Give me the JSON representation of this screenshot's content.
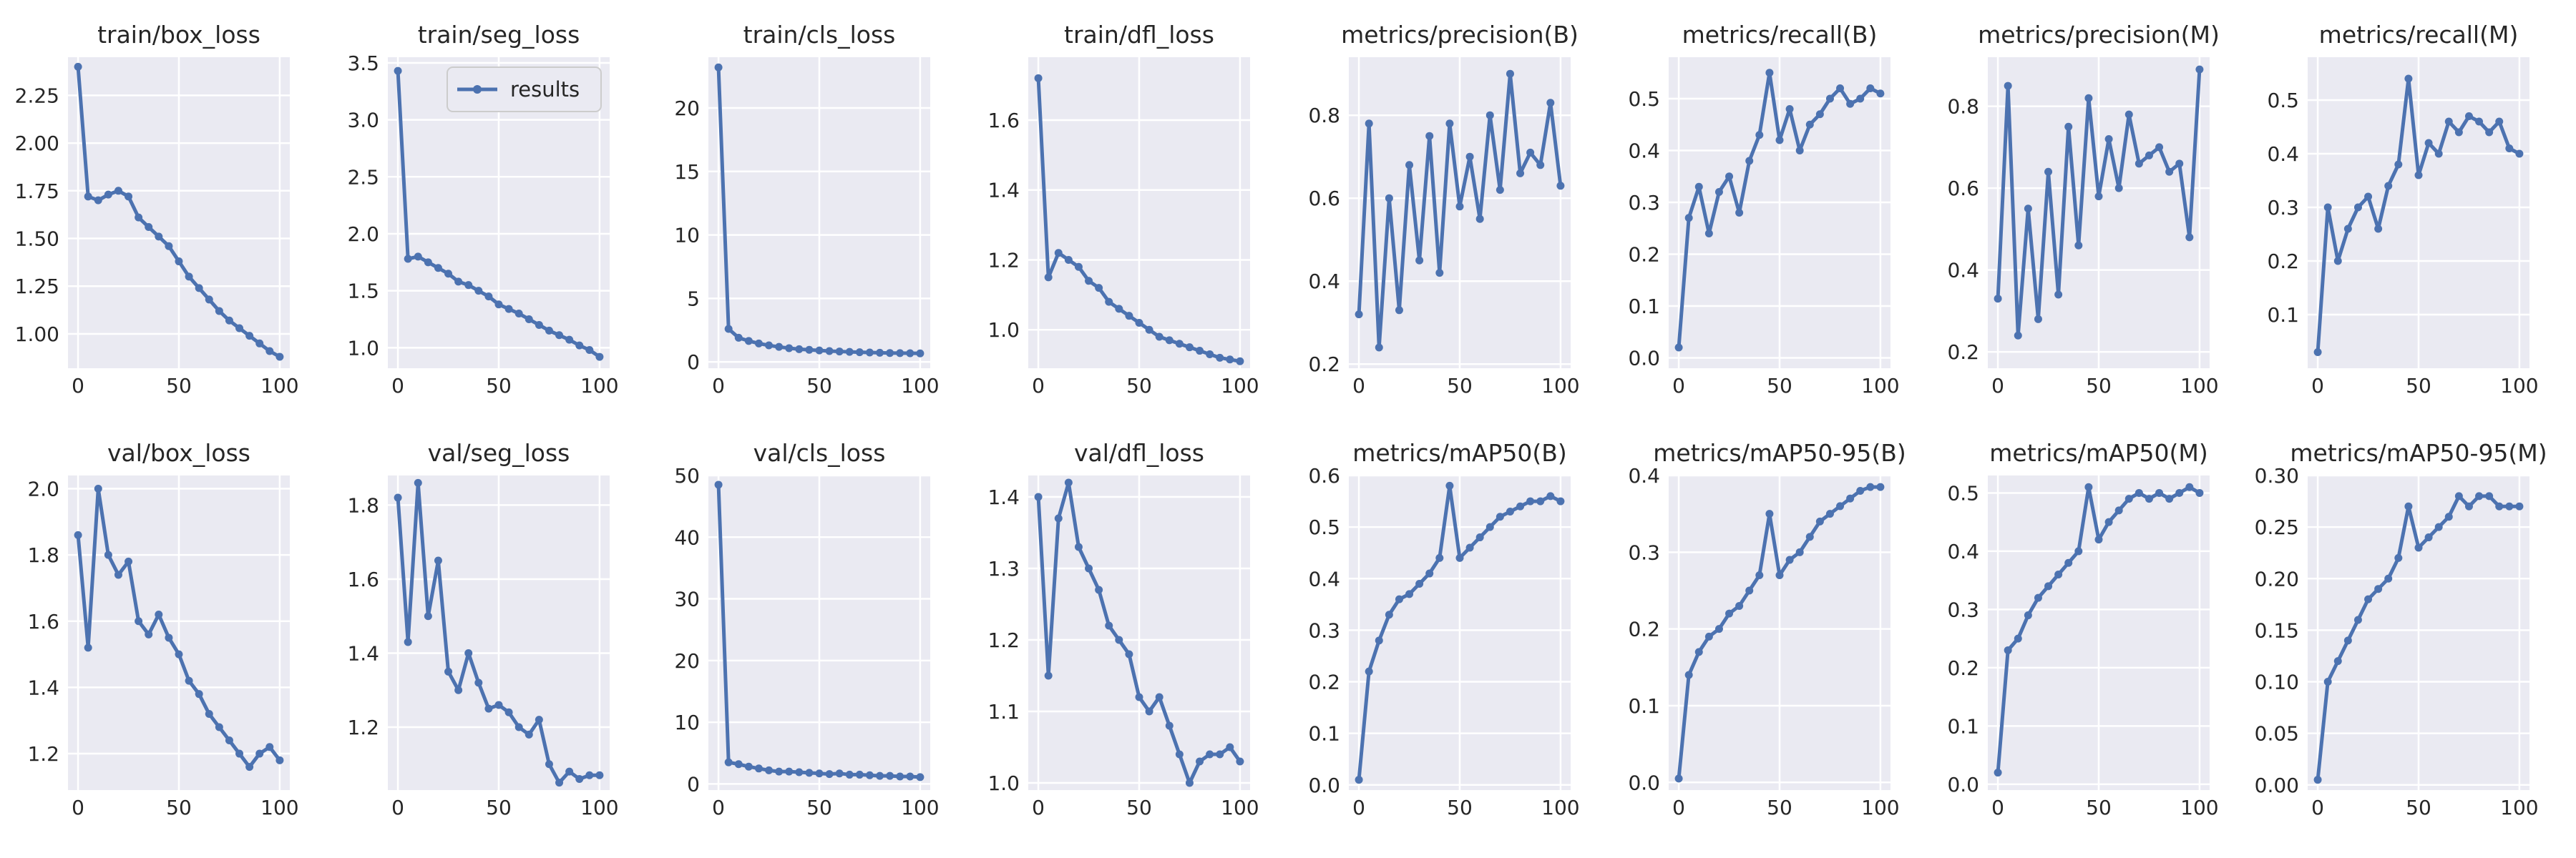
{
  "figure": {
    "style": {
      "background": "#eaeaf2",
      "grid_color": "#ffffff",
      "line_color": "#4c72b0",
      "tick_label_color": "#262626"
    },
    "legend": {
      "label": "results",
      "subplot_index": 1,
      "placement": "top-right"
    }
  },
  "chart_data": [
    {
      "type": "line",
      "title": "train/box_loss",
      "x_range": [
        0,
        100
      ],
      "ylim": [
        0.82,
        2.45
      ],
      "grid": true,
      "xticks": [
        "0",
        "50",
        "100"
      ],
      "yticks": [
        "1.00",
        "1.25",
        "1.50",
        "1.75",
        "2.00",
        "2.25"
      ],
      "series": [
        {
          "name": "results",
          "x_step": 5,
          "values": [
            2.4,
            1.72,
            1.7,
            1.73,
            1.75,
            1.72,
            1.61,
            1.56,
            1.51,
            1.46,
            1.38,
            1.3,
            1.24,
            1.18,
            1.12,
            1.07,
            1.03,
            0.99,
            0.95,
            0.91,
            0.88
          ]
        }
      ]
    },
    {
      "type": "line",
      "title": "train/seg_loss",
      "x_range": [
        0,
        100
      ],
      "ylim": [
        0.82,
        3.55
      ],
      "grid": true,
      "xticks": [
        "0",
        "50",
        "100"
      ],
      "yticks": [
        "1.0",
        "1.5",
        "2.0",
        "2.5",
        "3.0",
        "3.5"
      ],
      "series": [
        {
          "name": "results",
          "x_step": 5,
          "values": [
            3.43,
            1.78,
            1.8,
            1.75,
            1.7,
            1.65,
            1.58,
            1.55,
            1.5,
            1.45,
            1.38,
            1.34,
            1.3,
            1.25,
            1.2,
            1.15,
            1.11,
            1.07,
            1.02,
            0.98,
            0.92
          ]
        }
      ]
    },
    {
      "type": "line",
      "title": "train/cls_loss",
      "x_range": [
        0,
        100
      ],
      "ylim": [
        -0.5,
        24
      ],
      "grid": true,
      "xticks": [
        "0",
        "50",
        "100"
      ],
      "yticks": [
        "0",
        "5",
        "10",
        "15",
        "20"
      ],
      "series": [
        {
          "name": "results",
          "x_step": 5,
          "values": [
            23.2,
            2.6,
            1.9,
            1.65,
            1.45,
            1.3,
            1.18,
            1.08,
            1.0,
            0.95,
            0.9,
            0.85,
            0.82,
            0.79,
            0.76,
            0.74,
            0.72,
            0.7,
            0.69,
            0.68,
            0.67
          ]
        }
      ]
    },
    {
      "type": "line",
      "title": "train/dfl_loss",
      "x_range": [
        0,
        100
      ],
      "ylim": [
        0.89,
        1.78
      ],
      "grid": true,
      "xticks": [
        "0",
        "50",
        "100"
      ],
      "yticks": [
        "1.0",
        "1.2",
        "1.4",
        "1.6"
      ],
      "series": [
        {
          "name": "results",
          "x_step": 5,
          "values": [
            1.72,
            1.15,
            1.22,
            1.2,
            1.18,
            1.14,
            1.12,
            1.08,
            1.06,
            1.04,
            1.02,
            1.0,
            0.98,
            0.97,
            0.96,
            0.95,
            0.94,
            0.93,
            0.92,
            0.915,
            0.91
          ]
        }
      ]
    },
    {
      "type": "line",
      "title": "metrics/precision(B)",
      "x_range": [
        0,
        100
      ],
      "ylim": [
        0.19,
        0.94
      ],
      "grid": true,
      "xticks": [
        "0",
        "50",
        "100"
      ],
      "yticks": [
        "0.2",
        "0.4",
        "0.6",
        "0.8"
      ],
      "series": [
        {
          "name": "results",
          "x_step": 5,
          "values": [
            0.32,
            0.78,
            0.24,
            0.6,
            0.33,
            0.68,
            0.45,
            0.75,
            0.42,
            0.78,
            0.58,
            0.7,
            0.55,
            0.8,
            0.62,
            0.9,
            0.66,
            0.71,
            0.68,
            0.83,
            0.63
          ]
        }
      ]
    },
    {
      "type": "line",
      "title": "metrics/recall(B)",
      "x_range": [
        0,
        100
      ],
      "ylim": [
        -0.02,
        0.58
      ],
      "grid": true,
      "xticks": [
        "0",
        "50",
        "100"
      ],
      "yticks": [
        "0.0",
        "0.1",
        "0.2",
        "0.3",
        "0.4",
        "0.5"
      ],
      "series": [
        {
          "name": "results",
          "x_step": 5,
          "values": [
            0.02,
            0.27,
            0.33,
            0.24,
            0.32,
            0.35,
            0.28,
            0.38,
            0.43,
            0.55,
            0.42,
            0.48,
            0.4,
            0.45,
            0.47,
            0.5,
            0.52,
            0.49,
            0.5,
            0.52,
            0.51
          ]
        }
      ]
    },
    {
      "type": "line",
      "title": "metrics/precision(M)",
      "x_range": [
        0,
        100
      ],
      "ylim": [
        0.16,
        0.92
      ],
      "grid": true,
      "xticks": [
        "0",
        "50",
        "100"
      ],
      "yticks": [
        "0.2",
        "0.4",
        "0.6",
        "0.8"
      ],
      "series": [
        {
          "name": "results",
          "x_step": 5,
          "values": [
            0.33,
            0.85,
            0.24,
            0.55,
            0.28,
            0.64,
            0.34,
            0.75,
            0.46,
            0.82,
            0.58,
            0.72,
            0.6,
            0.78,
            0.66,
            0.68,
            0.7,
            0.64,
            0.66,
            0.48,
            0.89
          ]
        }
      ]
    },
    {
      "type": "line",
      "title": "metrics/recall(M)",
      "x_range": [
        0,
        100
      ],
      "ylim": [
        0.0,
        0.58
      ],
      "grid": true,
      "xticks": [
        "0",
        "50",
        "100"
      ],
      "yticks": [
        "0.1",
        "0.2",
        "0.3",
        "0.4",
        "0.5"
      ],
      "series": [
        {
          "name": "results",
          "x_step": 5,
          "values": [
            0.03,
            0.3,
            0.2,
            0.26,
            0.3,
            0.32,
            0.26,
            0.34,
            0.38,
            0.54,
            0.36,
            0.42,
            0.4,
            0.46,
            0.44,
            0.47,
            0.46,
            0.44,
            0.46,
            0.41,
            0.4
          ]
        }
      ]
    },
    {
      "type": "line",
      "title": "val/box_loss",
      "x_range": [
        0,
        100
      ],
      "ylim": [
        1.09,
        2.04
      ],
      "grid": true,
      "xticks": [
        "0",
        "50",
        "100"
      ],
      "yticks": [
        "1.2",
        "1.4",
        "1.6",
        "1.8",
        "2.0"
      ],
      "series": [
        {
          "name": "results",
          "x_step": 5,
          "values": [
            1.86,
            1.52,
            2.0,
            1.8,
            1.74,
            1.78,
            1.6,
            1.56,
            1.62,
            1.55,
            1.5,
            1.42,
            1.38,
            1.32,
            1.28,
            1.24,
            1.2,
            1.16,
            1.2,
            1.22,
            1.18
          ]
        }
      ]
    },
    {
      "type": "line",
      "title": "val/seg_loss",
      "x_range": [
        0,
        100
      ],
      "ylim": [
        1.03,
        1.88
      ],
      "grid": true,
      "xticks": [
        "0",
        "50",
        "100"
      ],
      "yticks": [
        "1.2",
        "1.4",
        "1.6",
        "1.8"
      ],
      "series": [
        {
          "name": "results",
          "x_step": 5,
          "values": [
            1.82,
            1.43,
            1.86,
            1.5,
            1.65,
            1.35,
            1.3,
            1.4,
            1.32,
            1.25,
            1.26,
            1.24,
            1.2,
            1.18,
            1.22,
            1.1,
            1.05,
            1.08,
            1.06,
            1.07,
            1.07
          ]
        }
      ]
    },
    {
      "type": "line",
      "title": "val/cls_loss",
      "x_range": [
        0,
        100
      ],
      "ylim": [
        -1,
        50
      ],
      "grid": true,
      "xticks": [
        "0",
        "50",
        "100"
      ],
      "yticks": [
        "0",
        "10",
        "20",
        "30",
        "40",
        "50"
      ],
      "series": [
        {
          "name": "results",
          "x_step": 5,
          "values": [
            48.5,
            3.5,
            3.2,
            2.8,
            2.5,
            2.2,
            2.0,
            2.0,
            1.9,
            1.8,
            1.7,
            1.6,
            1.7,
            1.5,
            1.5,
            1.4,
            1.3,
            1.3,
            1.2,
            1.2,
            1.1
          ]
        }
      ]
    },
    {
      "type": "line",
      "title": "val/dfl_loss",
      "x_range": [
        0,
        100
      ],
      "ylim": [
        0.99,
        1.43
      ],
      "grid": true,
      "xticks": [
        "0",
        "50",
        "100"
      ],
      "yticks": [
        "1.0",
        "1.1",
        "1.2",
        "1.3",
        "1.4"
      ],
      "series": [
        {
          "name": "results",
          "x_step": 5,
          "values": [
            1.4,
            1.15,
            1.37,
            1.42,
            1.33,
            1.3,
            1.27,
            1.22,
            1.2,
            1.18,
            1.12,
            1.1,
            1.12,
            1.08,
            1.04,
            1.0,
            1.03,
            1.04,
            1.04,
            1.05,
            1.03
          ]
        }
      ]
    },
    {
      "type": "line",
      "title": "metrics/mAP50(B)",
      "x_range": [
        0,
        100
      ],
      "ylim": [
        -0.01,
        0.6
      ],
      "grid": true,
      "xticks": [
        "0",
        "50",
        "100"
      ],
      "yticks": [
        "0.0",
        "0.1",
        "0.2",
        "0.3",
        "0.4",
        "0.5",
        "0.6"
      ],
      "series": [
        {
          "name": "results",
          "x_step": 5,
          "values": [
            0.01,
            0.22,
            0.28,
            0.33,
            0.36,
            0.37,
            0.39,
            0.41,
            0.44,
            0.58,
            0.44,
            0.46,
            0.48,
            0.5,
            0.52,
            0.53,
            0.54,
            0.55,
            0.55,
            0.56,
            0.55
          ]
        }
      ]
    },
    {
      "type": "line",
      "title": "metrics/mAP50-95(B)",
      "x_range": [
        0,
        100
      ],
      "ylim": [
        -0.01,
        0.4
      ],
      "grid": true,
      "xticks": [
        "0",
        "50",
        "100"
      ],
      "yticks": [
        "0.0",
        "0.1",
        "0.2",
        "0.3",
        "0.4"
      ],
      "series": [
        {
          "name": "results",
          "x_step": 5,
          "values": [
            0.005,
            0.14,
            0.17,
            0.19,
            0.2,
            0.22,
            0.23,
            0.25,
            0.27,
            0.35,
            0.27,
            0.29,
            0.3,
            0.32,
            0.34,
            0.35,
            0.36,
            0.37,
            0.38,
            0.385,
            0.385
          ]
        }
      ]
    },
    {
      "type": "line",
      "title": "metrics/mAP50(M)",
      "x_range": [
        0,
        100
      ],
      "ylim": [
        -0.01,
        0.53
      ],
      "grid": true,
      "xticks": [
        "0",
        "50",
        "100"
      ],
      "yticks": [
        "0.0",
        "0.1",
        "0.2",
        "0.3",
        "0.4",
        "0.5"
      ],
      "series": [
        {
          "name": "results",
          "x_step": 5,
          "values": [
            0.02,
            0.23,
            0.25,
            0.29,
            0.32,
            0.34,
            0.36,
            0.38,
            0.4,
            0.51,
            0.42,
            0.45,
            0.47,
            0.49,
            0.5,
            0.49,
            0.5,
            0.49,
            0.5,
            0.51,
            0.5
          ]
        }
      ]
    },
    {
      "type": "line",
      "title": "metrics/mAP50-95(M)",
      "x_range": [
        0,
        100
      ],
      "ylim": [
        -0.005,
        0.3
      ],
      "grid": true,
      "xticks": [
        "0",
        "50",
        "100"
      ],
      "yticks": [
        "0.00",
        "0.05",
        "0.10",
        "0.15",
        "0.20",
        "0.25",
        "0.30"
      ],
      "series": [
        {
          "name": "results",
          "x_step": 5,
          "values": [
            0.005,
            0.1,
            0.12,
            0.14,
            0.16,
            0.18,
            0.19,
            0.2,
            0.22,
            0.27,
            0.23,
            0.24,
            0.25,
            0.26,
            0.28,
            0.27,
            0.28,
            0.28,
            0.27,
            0.27,
            0.27
          ]
        }
      ]
    }
  ]
}
